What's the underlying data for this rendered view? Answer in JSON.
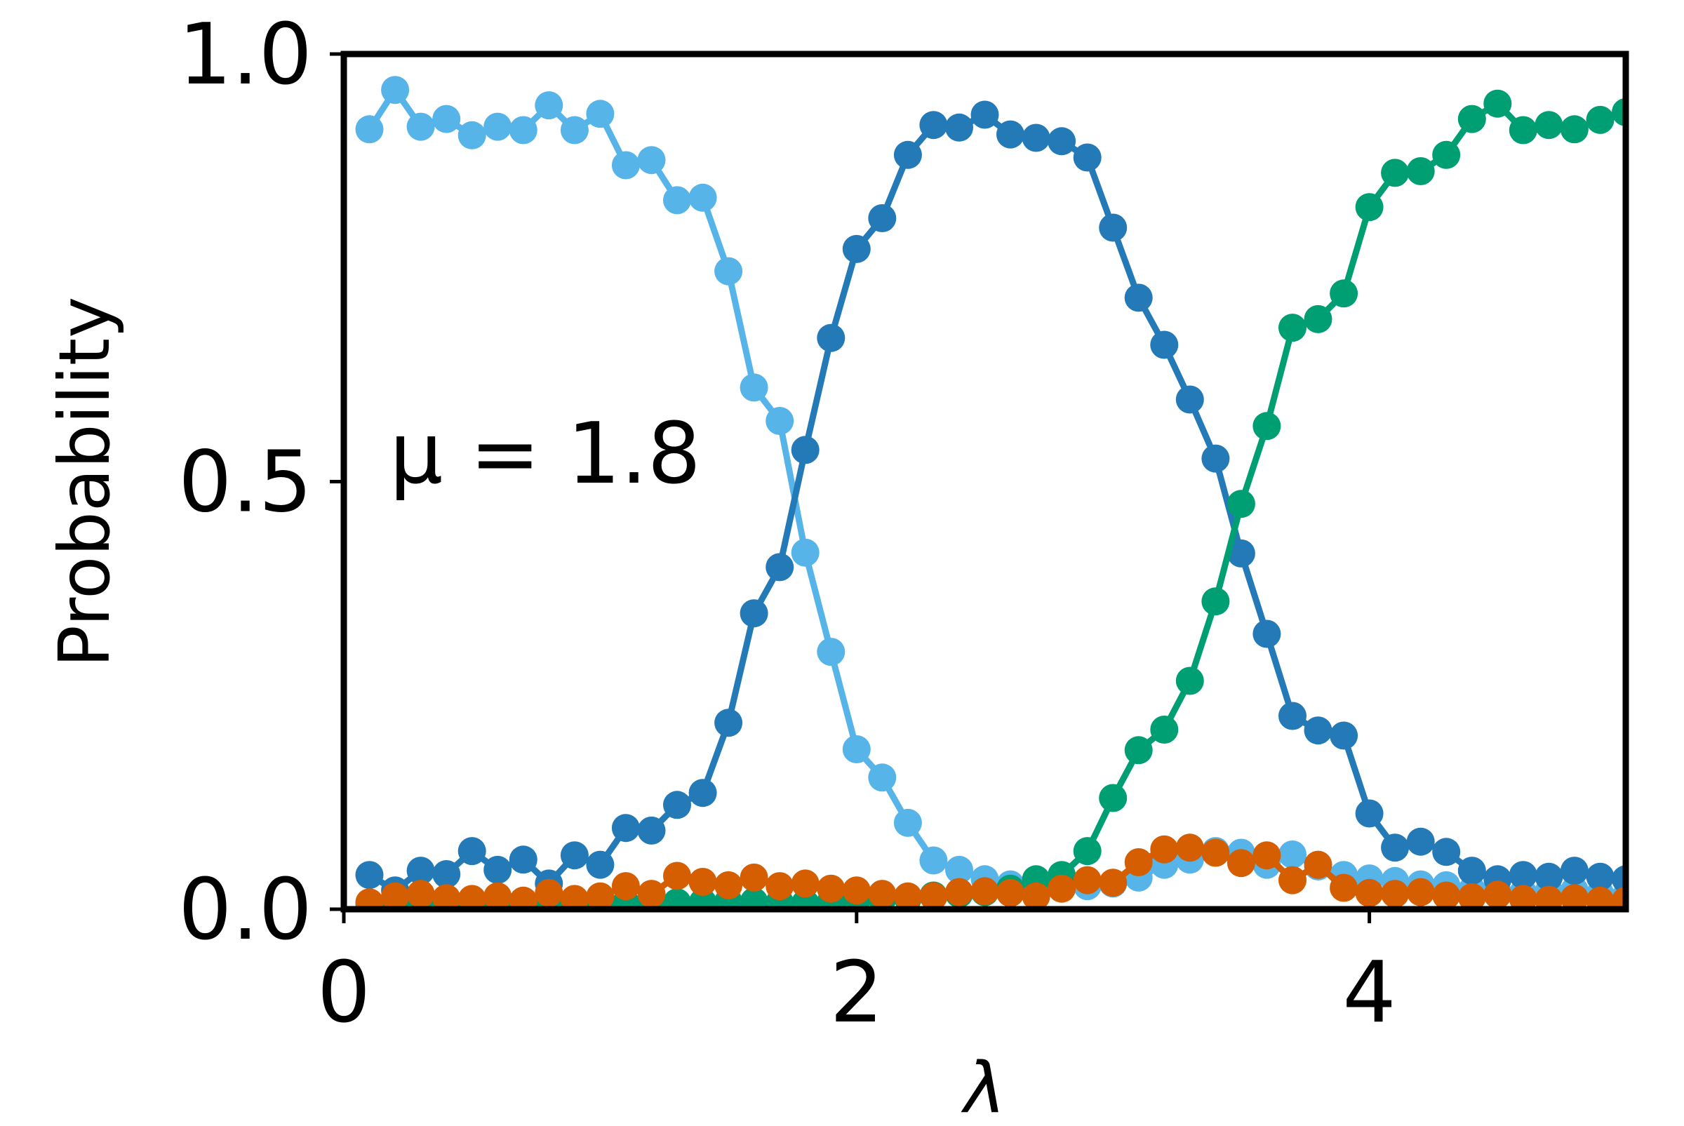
{
  "chart_data": {
    "type": "line",
    "xlabel": "λ",
    "ylabel": "Probability",
    "annotation": "μ = 1.8",
    "xlim": [
      0,
      5.0
    ],
    "ylim": [
      0,
      1.0
    ],
    "x_ticks": [
      0,
      2,
      4
    ],
    "x_tick_labels": [
      "0",
      "2",
      "4"
    ],
    "y_ticks": [
      0,
      0.5,
      1.0
    ],
    "y_tick_labels": [
      "0.0",
      "0.5",
      "1.0"
    ],
    "x": [
      0.1,
      0.2,
      0.3,
      0.4,
      0.5,
      0.6,
      0.7,
      0.8,
      0.9,
      1.0,
      1.1,
      1.2,
      1.3,
      1.4,
      1.5,
      1.6,
      1.7,
      1.8,
      1.9,
      2.0,
      2.1,
      2.2,
      2.3,
      2.4,
      2.5,
      2.6,
      2.7,
      2.8,
      2.9,
      3.0,
      3.1,
      3.2,
      3.3,
      3.4,
      3.5,
      3.6,
      3.7,
      3.8,
      3.9,
      4.0,
      4.1,
      4.2,
      4.3,
      4.4,
      4.5,
      4.6,
      4.7,
      4.8,
      4.9,
      5.0
    ],
    "series": [
      {
        "color": "#56b4e9",
        "values": [
          0.912,
          0.958,
          0.915,
          0.924,
          0.905,
          0.915,
          0.911,
          0.94,
          0.911,
          0.93,
          0.87,
          0.876,
          0.829,
          0.832,
          0.746,
          0.61,
          0.571,
          0.417,
          0.301,
          0.187,
          0.154,
          0.101,
          0.057,
          0.046,
          0.035,
          0.029,
          0.03,
          0.031,
          0.027,
          0.03,
          0.037,
          0.052,
          0.058,
          0.068,
          0.066,
          0.052,
          0.064,
          0.05,
          0.04,
          0.036,
          0.033,
          0.029,
          0.028,
          0.022,
          0.02,
          0.019,
          0.021,
          0.022,
          0.018,
          0.015
        ]
      },
      {
        "color": "#2479b7",
        "values": [
          0.04,
          0.022,
          0.045,
          0.041,
          0.068,
          0.046,
          0.058,
          0.03,
          0.063,
          0.052,
          0.095,
          0.092,
          0.122,
          0.136,
          0.218,
          0.346,
          0.4,
          0.537,
          0.668,
          0.772,
          0.808,
          0.882,
          0.917,
          0.914,
          0.929,
          0.906,
          0.902,
          0.898,
          0.879,
          0.797,
          0.715,
          0.66,
          0.596,
          0.527,
          0.416,
          0.322,
          0.226,
          0.209,
          0.203,
          0.112,
          0.072,
          0.079,
          0.067,
          0.045,
          0.035,
          0.04,
          0.038,
          0.045,
          0.038,
          0.035
        ]
      },
      {
        "color": "#009e73",
        "values": [
          0.006,
          0.006,
          0.006,
          0.006,
          0.007,
          0.009,
          0.008,
          0.007,
          0.008,
          0.008,
          0.007,
          0.008,
          0.008,
          0.008,
          0.009,
          0.009,
          0.008,
          0.007,
          0.009,
          0.01,
          0.012,
          0.013,
          0.016,
          0.018,
          0.02,
          0.024,
          0.035,
          0.04,
          0.068,
          0.13,
          0.186,
          0.21,
          0.267,
          0.36,
          0.474,
          0.565,
          0.68,
          0.69,
          0.72,
          0.821,
          0.861,
          0.863,
          0.882,
          0.924,
          0.942,
          0.911,
          0.917,
          0.912,
          0.923,
          0.932
        ]
      },
      {
        "color": "#d55e00",
        "values": [
          0.008,
          0.015,
          0.018,
          0.013,
          0.012,
          0.015,
          0.01,
          0.019,
          0.012,
          0.015,
          0.027,
          0.018,
          0.039,
          0.032,
          0.028,
          0.037,
          0.027,
          0.03,
          0.024,
          0.022,
          0.018,
          0.015,
          0.015,
          0.02,
          0.021,
          0.019,
          0.015,
          0.024,
          0.034,
          0.031,
          0.055,
          0.07,
          0.072,
          0.066,
          0.054,
          0.063,
          0.034,
          0.052,
          0.025,
          0.019,
          0.018,
          0.02,
          0.016,
          0.014,
          0.017,
          0.012,
          0.011,
          0.013,
          0.01,
          0.01
        ]
      }
    ]
  }
}
